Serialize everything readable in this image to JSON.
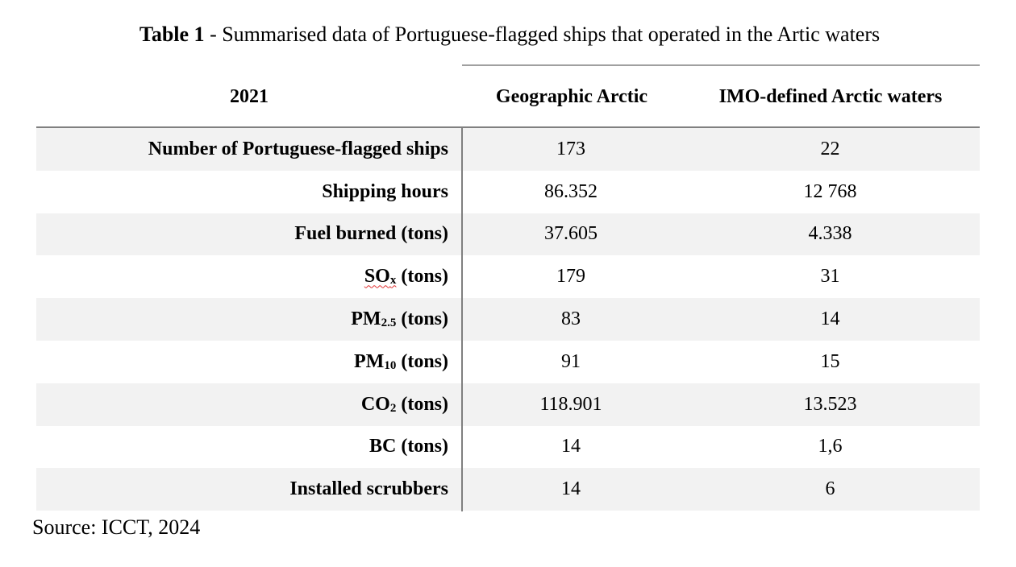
{
  "title": {
    "bold": "Table 1",
    "rest": " - Summarised data of Portuguese-flagged ships that operated in the Artic waters"
  },
  "header": {
    "year": "2021",
    "col_geo": "Geographic Arctic",
    "col_imo": "IMO-defined Arctic waters"
  },
  "rows": [
    {
      "label": "Number of Portuguese-flagged ships",
      "sub": "",
      "suffix": "",
      "geo": "173",
      "imo": "22"
    },
    {
      "label": "Shipping hours",
      "sub": "",
      "suffix": "",
      "geo": "86.352",
      "imo": "12 768"
    },
    {
      "label": "Fuel burned (tons)",
      "sub": "",
      "suffix": "",
      "geo": "37.605",
      "imo": "4.338"
    },
    {
      "label": "SO",
      "sub": "x",
      "suffix": " (tons)",
      "geo": "179",
      "imo": "31"
    },
    {
      "label": "PM",
      "sub": "2.5",
      "suffix": " (tons)",
      "geo": "83",
      "imo": "14"
    },
    {
      "label": "PM",
      "sub": "10",
      "suffix": " (tons)",
      "geo": "91",
      "imo": "15"
    },
    {
      "label": "CO",
      "sub": "2",
      "suffix": " (tons)",
      "geo": "118.901",
      "imo": "13.523"
    },
    {
      "label": "BC (tons)",
      "sub": "",
      "suffix": "",
      "geo": "14",
      "imo": "1,6"
    },
    {
      "label": "Installed scrubbers",
      "sub": "",
      "suffix": "",
      "geo": "14",
      "imo": "6"
    }
  ],
  "source": "Source: ICCT, 2024"
}
